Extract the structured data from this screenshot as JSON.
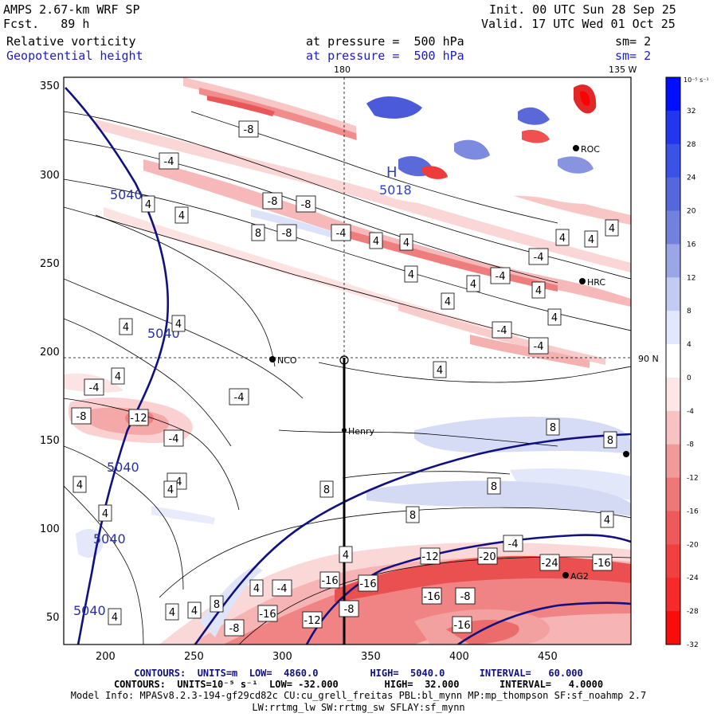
{
  "header": {
    "model": "AMPS 2.67-km WRF SP",
    "forecast": "Fcst.   89 h",
    "init": "Init. 00 UTC Sun 28 Sep 25",
    "valid": "Valid. 17 UTC Wed 01 Oct 25",
    "field1_name": "Relative vorticity",
    "field1_level": "at pressure =  500 hPa",
    "field1_smooth": "sm= 2",
    "field2_name": "Geopotential height",
    "field2_level": "at pressure =  500 hPa",
    "field2_smooth": "sm= 2"
  },
  "map_labels": {
    "lon_180": "180",
    "lon_135w": "135 W",
    "lat_90n": "90 N",
    "high_marker": "H",
    "high_value": "5018"
  },
  "stations": [
    {
      "name": "ROC"
    },
    {
      "name": "HRC"
    },
    {
      "name": "NCO"
    },
    {
      "name": "Henry"
    },
    {
      "name": "AG2"
    }
  ],
  "y_ticks": [
    "350",
    "300",
    "250",
    "200",
    "150",
    "100",
    "50"
  ],
  "x_ticks": [
    "200",
    "250",
    "300",
    "350",
    "400",
    "450"
  ],
  "colorbar": {
    "unit_label": "10⁻⁵ s⁻¹",
    "ticks": [
      "32",
      "28",
      "24",
      "20",
      "16",
      "12",
      "8",
      "4",
      "0",
      "-4",
      "-8",
      "-12",
      "-16",
      "-20",
      "-24",
      "-28",
      "-32"
    ],
    "colors": [
      "#0010ff",
      "#2236f0",
      "#3a52e6",
      "#5468dc",
      "#7282dc",
      "#9aa6e6",
      "#c2cbf2",
      "#e2e8fb",
      "#ffffff",
      "#fde6e6",
      "#f7c2c2",
      "#f09a9a",
      "#ec7878",
      "#ee5a5a",
      "#f24040",
      "#f62a2a",
      "#fa0c0c"
    ]
  },
  "footer": {
    "contours_height": "CONTOURS:  UNITS=m  LOW=  4860.0         HIGH=  5040.0      INTERVAL=   60.000",
    "contours_vort": "CONTOURS:  UNITS=10⁻⁵ s⁻¹  LOW= -32.000        HIGH=  32.000       INTERVAL=   4.0000",
    "model_info": "Model Info: MPASv8.2.3-194-gf29cd82c CU:cu_grell_freitas PBL:bl_mynn MP:mp_thompson SF:sf_noahmp 2.7",
    "model_info2": "LW:rrtmg_lw SW:rrtmg_sw SFLAY:sf_mynn"
  },
  "contour_labels": {
    "height": [
      "5040",
      "5040",
      "5040",
      "5040",
      "5040",
      "5040"
    ],
    "vorticity": [
      "-8",
      "-4",
      "-8",
      "-8",
      "4",
      "4",
      "8",
      "-8",
      "-4",
      "4",
      "4",
      "4",
      "4",
      "4",
      "-4",
      "4",
      "-4",
      "4",
      "4",
      "4",
      "-4",
      "-4",
      "4",
      "4",
      "4",
      "-4",
      "4",
      "-4",
      "-8",
      "-12",
      "-4",
      "4",
      "-4",
      "4",
      "4",
      "8",
      "8",
      "8",
      "8",
      "8",
      "4",
      "4",
      "8",
      "4",
      "-4",
      "4",
      "-12",
      "-20",
      "-24",
      "-16",
      "-16",
      "-16",
      "-16",
      "-8",
      "-4",
      "-8",
      "-16",
      "-12",
      "-8",
      "-16",
      "4",
      "4",
      "4"
    ]
  }
}
